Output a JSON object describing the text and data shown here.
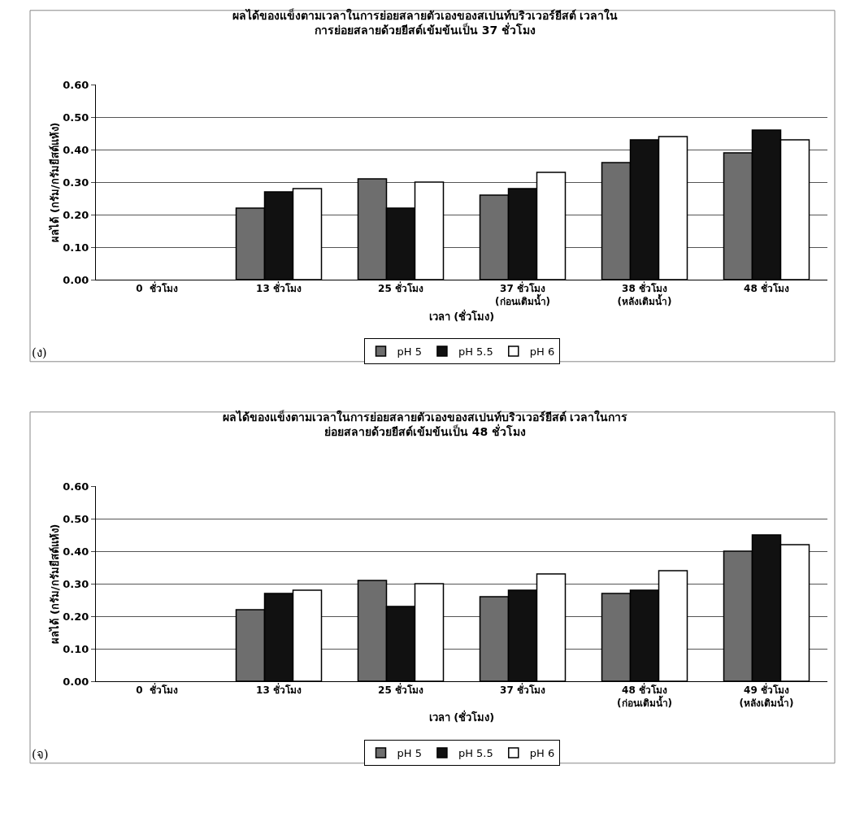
{
  "chart_data": [
    {
      "type": "bar",
      "title": "ผลได้ของแข็งตามเวลาในการย่อยสลายตัวเองของสเปนท์บริวเวอร์ยีสต์ เวลาใน\nการย่อยสลายด้วยยีสต์เข้มข้นเป็น 37 ชั่วโมง",
      "xlabel": "เวลา (ชั่วโมง)",
      "ylabel": "ผลได้ (กรัม/กรัมยีสต์แห้ง)",
      "categories": [
        "0  ชั่วโมง",
        "13 ชั่วโมง",
        "25 ชั่วโมง",
        "37 ชั่วโมง\n(ก่อนเติมน้ำ)",
        "38 ชั่วโมง\n(หลังเติมน้ำ)",
        "48 ชั่วโมง"
      ],
      "series": [
        {
          "name": "pH 5",
          "color": "#6e6e6e",
          "values": [
            null,
            0.22,
            0.31,
            0.26,
            0.36,
            0.39
          ]
        },
        {
          "name": "pH 5.5",
          "color": "#111111",
          "values": [
            null,
            0.27,
            0.22,
            0.28,
            0.43,
            0.46
          ]
        },
        {
          "name": "pH 6",
          "color": "#ffffff",
          "values": [
            null,
            0.28,
            0.3,
            0.33,
            0.44,
            0.43
          ]
        }
      ],
      "ylim": [
        0,
        0.6
      ],
      "yticks": [
        {
          "value": 0,
          "label": "0.00"
        },
        {
          "value": 0.1,
          "label": "0.10"
        },
        {
          "value": 0.2,
          "label": "0.20"
        },
        {
          "value": 0.3,
          "label": "0.30"
        },
        {
          "value": 0.4,
          "label": "0.40"
        },
        {
          "value": 0.5,
          "label": "0.50"
        },
        {
          "value": 0.6,
          "label": "0.60"
        }
      ],
      "grid": "y",
      "legend": "bottom",
      "annotations": [
        "(ง)"
      ]
    },
    {
      "type": "bar",
      "title": "ผลได้ของแข็งตามเวลาในการย่อยสลายตัวเองของสเปนท์บริวเวอร์ยีสต์ เวลาในการ\nย่อยสลายด้วยยีสต์เข้มข้นเป็น 48 ชั่วโมง",
      "xlabel": "เวลา (ชั่วโมง)",
      "ylabel": "ผลได้ (กรัม/กรัมยีสต์แห้ง)",
      "categories": [
        "0  ชั่วโมง",
        "13 ชั่วโมง",
        "25 ชั่วโมง",
        "37 ชั่วโมง",
        "48 ชั่วโมง\n(ก่อนเติมน้ำ)",
        "49 ชั่วโมง\n(หลังเติมน้ำ)"
      ],
      "series": [
        {
          "name": "pH 5",
          "color": "#6e6e6e",
          "values": [
            null,
            0.22,
            0.31,
            0.26,
            0.27,
            0.4
          ]
        },
        {
          "name": "pH 5.5",
          "color": "#111111",
          "values": [
            null,
            0.27,
            0.23,
            0.28,
            0.28,
            0.45
          ]
        },
        {
          "name": "pH 6",
          "color": "#ffffff",
          "values": [
            null,
            0.28,
            0.3,
            0.33,
            0.34,
            0.42
          ]
        }
      ],
      "ylim": [
        0,
        0.6
      ],
      "yticks": [
        {
          "value": 0,
          "label": "0.00"
        },
        {
          "value": 0.1,
          "label": "0.10"
        },
        {
          "value": 0.2,
          "label": "0.20"
        },
        {
          "value": 0.3,
          "label": "0.30"
        },
        {
          "value": 0.4,
          "label": "0.40"
        },
        {
          "value": 0.5,
          "label": "0.50"
        },
        {
          "value": 0.6,
          "label": "0.60"
        }
      ],
      "grid": "y",
      "legend": "bottom",
      "annotations": [
        "(จ)"
      ]
    }
  ]
}
